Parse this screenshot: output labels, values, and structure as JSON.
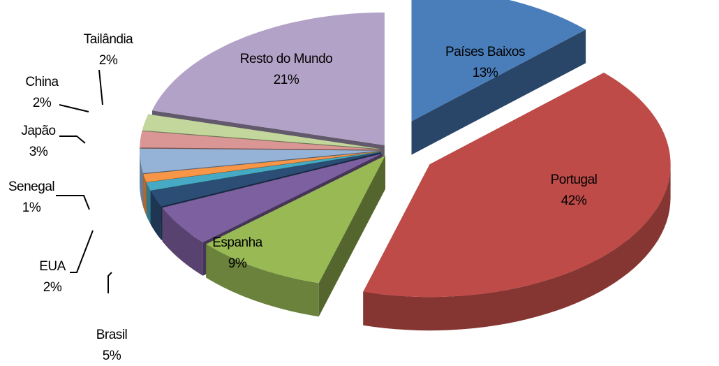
{
  "chart_data": {
    "type": "pie",
    "categories": [
      "Países Baixos",
      "Portugal",
      "Espanha",
      "Brasil",
      "EUA",
      "Senegal",
      null,
      "Japão",
      "China",
      "Tailândia",
      "Resto do Mundo"
    ],
    "values": [
      13,
      42,
      9,
      5,
      2,
      1,
      1,
      3,
      2,
      2,
      21
    ],
    "value_labels": [
      "13%",
      "42%",
      "9%",
      "5%",
      "2%",
      "1%",
      null,
      "3%",
      "2%",
      "2%",
      "21%"
    ],
    "colors": [
      "#4a7ebb",
      "#be4b48",
      "#98b954",
      "#7d60a0",
      "#2c4d75",
      "#46aac5",
      "#f79646",
      "#95b3d7",
      "#d99694",
      "#c3d69b",
      "#b3a2c7"
    ]
  }
}
